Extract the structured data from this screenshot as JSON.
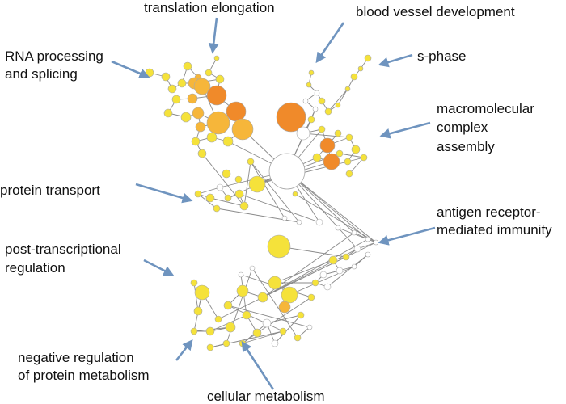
{
  "colors": {
    "arrow": "#6f94bf",
    "edge": "#8a8a8a",
    "node_stroke": "#a8a8a8",
    "high": "#f08a2a",
    "mid": "#f6b63a",
    "low": "#f5e23a",
    "none": "#ffffff"
  },
  "annotations": {
    "translation_elongation": "translation elongation",
    "blood_vessel_development": "blood vessel development",
    "rna_processing_line1": "RNA processing",
    "rna_processing_line2": "and splicing",
    "s_phase": "s-phase",
    "macromolecular_line1": "macromolecular",
    "macromolecular_line2": "complex",
    "macromolecular_line3": "assembly",
    "protein_transport": "protein transport",
    "antigen_line1": "antigen receptor-",
    "antigen_line2": "mediated immunity",
    "post_transcriptional_line1": "post-transcriptional",
    "post_transcriptional_line2": "regulation",
    "negative_regulation_line1": "negative regulation",
    "negative_regulation_line2": "of protein metabolism",
    "cellular_metabolism": "cellular metabolism"
  }
}
